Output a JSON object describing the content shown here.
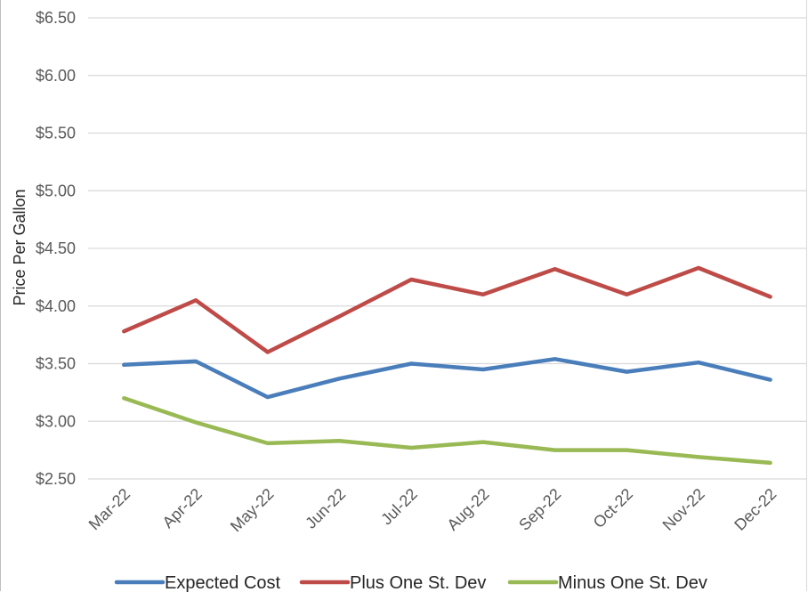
{
  "chart_data": {
    "type": "line",
    "title": "",
    "xlabel": "",
    "ylabel": "Price Per Gallon",
    "categories": [
      "Mar-22",
      "Apr-22",
      "May-22",
      "Jun-22",
      "Jul-22",
      "Aug-22",
      "Sep-22",
      "Oct-22",
      "Nov-22",
      "Dec-22"
    ],
    "y_ticks": [
      "$2.50",
      "$3.00",
      "$3.50",
      "$4.00",
      "$4.50",
      "$5.00",
      "$5.50",
      "$6.00",
      "$6.50"
    ],
    "ylim": [
      2.5,
      6.5
    ],
    "grid": true,
    "legend_position": "bottom",
    "series": [
      {
        "name": "Expected Cost",
        "color": "#4a7ebb",
        "values": [
          3.49,
          3.52,
          3.21,
          3.37,
          3.5,
          3.45,
          3.54,
          3.43,
          3.51,
          3.36
        ]
      },
      {
        "name": "Plus One St. Dev",
        "color": "#be4b48",
        "values": [
          3.78,
          4.05,
          3.6,
          3.91,
          4.23,
          4.1,
          4.32,
          4.1,
          4.33,
          4.08
        ]
      },
      {
        "name": "Minus One St. Dev",
        "color": "#98b954",
        "values": [
          3.2,
          2.99,
          2.81,
          2.83,
          2.77,
          2.82,
          2.75,
          2.75,
          2.69,
          2.64
        ]
      }
    ]
  }
}
